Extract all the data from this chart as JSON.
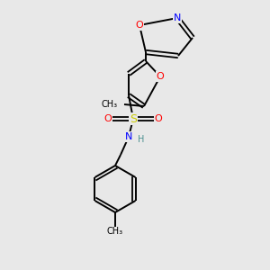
{
  "bg_color": "#e8e8e8",
  "atom_colors": {
    "C": "#000000",
    "N": "#0000ff",
    "O": "#ff0000",
    "S": "#cccc00",
    "H": "#4a9090"
  },
  "figsize": [
    3.0,
    3.0
  ],
  "dpi": 100,
  "lw_single": 1.4,
  "lw_double": 1.3,
  "double_sep": 2.2
}
